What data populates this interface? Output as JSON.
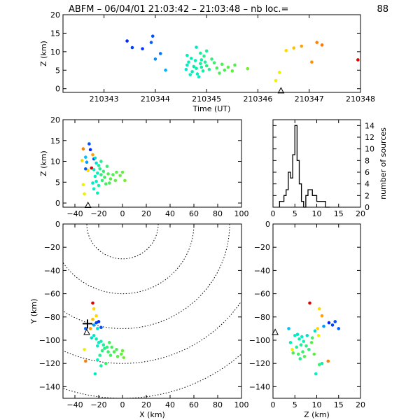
{
  "chart_data": [
    {
      "panel": "time-altitude",
      "type": "scatter",
      "title": "ABFM – 06/04/01 21:03:42 – 21:03:48 – nb loc.=",
      "count": "88",
      "xlabel": "Time (UT)",
      "ylabel": "Z (km)",
      "xlim": [
        210342.2,
        210348
      ],
      "ylim": [
        -1,
        20
      ],
      "xticks": [
        "210343",
        "210344",
        "210345",
        "210346",
        "210347",
        "210348"
      ],
      "yticks": [
        "0",
        "5",
        "10",
        "15",
        "20"
      ],
      "station": {
        "x": 210346.45,
        "y": -0.5
      },
      "points": [
        {
          "x": 210343.45,
          "y": 12.9,
          "c": "#0028ff"
        },
        {
          "x": 210343.55,
          "y": 11.1,
          "c": "#0040ff"
        },
        {
          "x": 210343.75,
          "y": 10.8,
          "c": "#0a34ff"
        },
        {
          "x": 210343.95,
          "y": 14.2,
          "c": "#0050ff"
        },
        {
          "x": 210343.92,
          "y": 12.5,
          "c": "#0060ff"
        },
        {
          "x": 210344.1,
          "y": 9.5,
          "c": "#0078ff"
        },
        {
          "x": 210344.0,
          "y": 8.0,
          "c": "#0090ff"
        },
        {
          "x": 210344.2,
          "y": 5.0,
          "c": "#00b0ff"
        },
        {
          "x": 210344.8,
          "y": 11.2,
          "c": "#00e6c8"
        },
        {
          "x": 210344.62,
          "y": 9.0,
          "c": "#00f0b8"
        },
        {
          "x": 210344.7,
          "y": 8.2,
          "c": "#00f0b0"
        },
        {
          "x": 210344.78,
          "y": 7.6,
          "c": "#00f0c0"
        },
        {
          "x": 210344.88,
          "y": 9.6,
          "c": "#10f0a0"
        },
        {
          "x": 210344.95,
          "y": 8.8,
          "c": "#20f090"
        },
        {
          "x": 210345.0,
          "y": 10.2,
          "c": "#18f098"
        },
        {
          "x": 210344.6,
          "y": 5.2,
          "c": "#00e8d0"
        },
        {
          "x": 210344.62,
          "y": 6.4,
          "c": "#00ecc8"
        },
        {
          "x": 210344.68,
          "y": 3.8,
          "c": "#00f0c0"
        },
        {
          "x": 210344.72,
          "y": 4.6,
          "c": "#00f0b8"
        },
        {
          "x": 210344.75,
          "y": 6.0,
          "c": "#00f0b0"
        },
        {
          "x": 210344.8,
          "y": 5.5,
          "c": "#08f0a8"
        },
        {
          "x": 210344.82,
          "y": 4.0,
          "c": "#00f0c0"
        },
        {
          "x": 210344.85,
          "y": 3.2,
          "c": "#00f0c8"
        },
        {
          "x": 210344.88,
          "y": 6.8,
          "c": "#10f0a0"
        },
        {
          "x": 210344.9,
          "y": 5.8,
          "c": "#18f098"
        },
        {
          "x": 210344.93,
          "y": 4.8,
          "c": "#10f0a8"
        },
        {
          "x": 210344.97,
          "y": 7.2,
          "c": "#20f090"
        },
        {
          "x": 210345.0,
          "y": 6.2,
          "c": "#28f080"
        },
        {
          "x": 210345.05,
          "y": 5.2,
          "c": "#20f090"
        },
        {
          "x": 210345.1,
          "y": 8.0,
          "c": "#30f078"
        },
        {
          "x": 210345.15,
          "y": 7.0,
          "c": "#38f070"
        },
        {
          "x": 210345.2,
          "y": 5.6,
          "c": "#40f060"
        },
        {
          "x": 210345.25,
          "y": 4.2,
          "c": "#48f058"
        },
        {
          "x": 210345.3,
          "y": 6.6,
          "c": "#50f050"
        },
        {
          "x": 210345.35,
          "y": 5.0,
          "c": "#48f050"
        },
        {
          "x": 210345.42,
          "y": 5.8,
          "c": "#58f048"
        },
        {
          "x": 210345.5,
          "y": 4.8,
          "c": "#60f040"
        },
        {
          "x": 210345.55,
          "y": 6.4,
          "c": "#50f050"
        },
        {
          "x": 210345.8,
          "y": 5.4,
          "c": "#70f030"
        },
        {
          "x": 210344.65,
          "y": 7.2,
          "c": "#00f0c0"
        },
        {
          "x": 210344.9,
          "y": 7.8,
          "c": "#10f0a8"
        },
        {
          "x": 210346.35,
          "y": 2.2,
          "c": "#f0f000"
        },
        {
          "x": 210346.42,
          "y": 4.4,
          "c": "#e8f000"
        },
        {
          "x": 210346.55,
          "y": 10.3,
          "c": "#ffd800"
        },
        {
          "x": 210346.7,
          "y": 11.0,
          "c": "#ffc000"
        },
        {
          "x": 210346.85,
          "y": 11.5,
          "c": "#ffa000"
        },
        {
          "x": 210347.15,
          "y": 12.5,
          "c": "#ff8000"
        },
        {
          "x": 210347.05,
          "y": 7.2,
          "c": "#ff9000"
        },
        {
          "x": 210347.25,
          "y": 11.8,
          "c": "#ff7800"
        },
        {
          "x": 210347.95,
          "y": 7.8,
          "c": "#e00000"
        }
      ]
    },
    {
      "panel": "x-altitude",
      "type": "scatter",
      "xlabel": "",
      "ylabel": "Z (km)",
      "xlim": [
        -50,
        100
      ],
      "ylim": [
        -1,
        20
      ],
      "xticks": [
        "−40",
        "−20",
        "0",
        "20",
        "40",
        "60",
        "80",
        "100"
      ],
      "yticks": [
        "0",
        "5",
        "10",
        "15",
        "20"
      ],
      "station": {
        "x": -29,
        "y": -0.5
      },
      "points": [
        {
          "x": -34,
          "y": 10.2,
          "c": "#ffd800"
        },
        {
          "x": -33,
          "y": 13.0,
          "c": "#ff8000"
        },
        {
          "x": -31,
          "y": 11.0,
          "c": "#00c0ff"
        },
        {
          "x": -28,
          "y": 14.2,
          "c": "#0050ff"
        },
        {
          "x": -27,
          "y": 12.8,
          "c": "#0028ff"
        },
        {
          "x": -29,
          "y": 7.8,
          "c": "#ffd800"
        },
        {
          "x": -26,
          "y": 8.4,
          "c": "#e00000"
        },
        {
          "x": -24,
          "y": 10.6,
          "c": "#0040ff"
        },
        {
          "x": -30,
          "y": 9.8,
          "c": "#00a0ff"
        },
        {
          "x": -31,
          "y": 8.2,
          "c": "#0060ff"
        },
        {
          "x": -25,
          "y": 11.6,
          "c": "#ffa000"
        },
        {
          "x": -33,
          "y": 4.4,
          "c": "#f0f000"
        },
        {
          "x": -32,
          "y": 2.2,
          "c": "#f0f000"
        },
        {
          "x": -22,
          "y": 9.6,
          "c": "#00e0d0"
        },
        {
          "x": -24,
          "y": 8.0,
          "c": "#00e8c8"
        },
        {
          "x": -21,
          "y": 7.2,
          "c": "#00f0b8"
        },
        {
          "x": -23,
          "y": 6.4,
          "c": "#00f0c0"
        },
        {
          "x": -22,
          "y": 5.2,
          "c": "#00f0c8"
        },
        {
          "x": -20,
          "y": 4.2,
          "c": "#10f0a8"
        },
        {
          "x": -25,
          "y": 4.8,
          "c": "#00e8d0"
        },
        {
          "x": -24,
          "y": 3.4,
          "c": "#00f0c0"
        },
        {
          "x": -19,
          "y": 8.2,
          "c": "#20f090"
        },
        {
          "x": -18,
          "y": 6.8,
          "c": "#28f080"
        },
        {
          "x": -17,
          "y": 5.4,
          "c": "#30f078"
        },
        {
          "x": -16,
          "y": 7.6,
          "c": "#38f070"
        },
        {
          "x": -15,
          "y": 6.2,
          "c": "#40f060"
        },
        {
          "x": -14,
          "y": 4.6,
          "c": "#48f058"
        },
        {
          "x": -12,
          "y": 7.0,
          "c": "#50f050"
        },
        {
          "x": -10,
          "y": 5.8,
          "c": "#58f048"
        },
        {
          "x": -8,
          "y": 6.8,
          "c": "#50f050"
        },
        {
          "x": -6,
          "y": 5.4,
          "c": "#60f040"
        },
        {
          "x": -5,
          "y": 7.4,
          "c": "#58f048"
        },
        {
          "x": -20,
          "y": 9.0,
          "c": "#18f098"
        },
        {
          "x": -18,
          "y": 10.0,
          "c": "#20f090"
        },
        {
          "x": -13,
          "y": 8.8,
          "c": "#38f070"
        },
        {
          "x": -2,
          "y": 6.6,
          "c": "#68f038"
        },
        {
          "x": 0,
          "y": 7.4,
          "c": "#60f040"
        },
        {
          "x": 2,
          "y": 5.4,
          "c": "#70f030"
        },
        {
          "x": -21,
          "y": 2.4,
          "c": "#00f0c0"
        },
        {
          "x": -23,
          "y": 10.8,
          "c": "#00e0d0"
        },
        {
          "x": -11,
          "y": 4.8,
          "c": "#48f058"
        }
      ]
    },
    {
      "panel": "altitude-histogram",
      "type": "bar",
      "xlabel": "",
      "ylabel": "number of sources",
      "xlim": [
        0,
        20
      ],
      "ylim": [
        0,
        15
      ],
      "xticks": [
        "0",
        "5",
        "10",
        "15",
        "20"
      ],
      "yticks": [
        "0",
        "2",
        "4",
        "6",
        "8",
        "10",
        "12",
        "14"
      ],
      "bin_width": 0.5,
      "bin_start": 1.5,
      "counts": [
        1,
        1,
        2,
        3,
        6,
        5,
        9,
        14,
        8,
        4,
        1,
        0,
        2,
        3,
        3,
        2,
        2,
        1,
        1,
        1,
        1,
        0,
        0
      ]
    },
    {
      "panel": "plan-view",
      "type": "scatter",
      "xlabel": "X (km)",
      "ylabel": "Y (km)",
      "xlim": [
        -50,
        100
      ],
      "ylim": [
        -150,
        0
      ],
      "xticks": [
        "−40",
        "−20",
        "0",
        "20",
        "40",
        "60",
        "80",
        "100"
      ],
      "yticks": [
        "−140",
        "−120",
        "−100",
        "−80",
        "−60",
        "−40",
        "−20",
        "0"
      ],
      "ring_center": [
        0,
        0
      ],
      "ring_radii": [
        30,
        60,
        90,
        120,
        150
      ],
      "station": {
        "x": -30,
        "y": -93
      },
      "points": [
        {
          "x": -25,
          "y": -68,
          "c": "#e00000"
        },
        {
          "x": -24,
          "y": -73,
          "c": "#ffd800"
        },
        {
          "x": -22,
          "y": -79,
          "c": "#ffd800"
        },
        {
          "x": -22,
          "y": -85,
          "c": "#0040ff"
        },
        {
          "x": -24,
          "y": -87,
          "c": "#00a0ff"
        },
        {
          "x": -20,
          "y": -84,
          "c": "#0028ff"
        },
        {
          "x": -27,
          "y": -90,
          "c": "#ffa000"
        },
        {
          "x": -31,
          "y": -90,
          "c": "#0060ff"
        },
        {
          "x": -21,
          "y": -90,
          "c": "#00e0d0"
        },
        {
          "x": -18,
          "y": -89,
          "c": "#0050ff"
        },
        {
          "x": -32,
          "y": -108,
          "c": "#f0f000"
        },
        {
          "x": -31,
          "y": -118,
          "c": "#ff8000"
        },
        {
          "x": -24,
          "y": -96,
          "c": "#00e8c8"
        },
        {
          "x": -22,
          "y": -99,
          "c": "#00f0b8"
        },
        {
          "x": -20,
          "y": -102,
          "c": "#00f0c0"
        },
        {
          "x": -21,
          "y": -105,
          "c": "#00f0c8"
        },
        {
          "x": -18,
          "y": -101,
          "c": "#10f0a8"
        },
        {
          "x": -16,
          "y": -104,
          "c": "#18f098"
        },
        {
          "x": -15,
          "y": -107,
          "c": "#20f090"
        },
        {
          "x": -17,
          "y": -109,
          "c": "#28f080"
        },
        {
          "x": -13,
          "y": -106,
          "c": "#30f078"
        },
        {
          "x": -12,
          "y": -110,
          "c": "#38f070"
        },
        {
          "x": -10,
          "y": -113,
          "c": "#40f060"
        },
        {
          "x": -7,
          "y": -110,
          "c": "#48f058"
        },
        {
          "x": -5,
          "y": -108,
          "c": "#50f050"
        },
        {
          "x": -4,
          "y": -114,
          "c": "#58f048"
        },
        {
          "x": -1,
          "y": -112,
          "c": "#60f040"
        },
        {
          "x": 0,
          "y": -109,
          "c": "#68f038"
        },
        {
          "x": 1,
          "y": -115,
          "c": "#70f030"
        },
        {
          "x": -19,
          "y": -113,
          "c": "#20f090"
        },
        {
          "x": -21,
          "y": -117,
          "c": "#00f0c0"
        },
        {
          "x": -14,
          "y": -120,
          "c": "#38f070"
        },
        {
          "x": -18,
          "y": -122,
          "c": "#10f0a8"
        },
        {
          "x": -26,
          "y": -98,
          "c": "#00e0d0"
        },
        {
          "x": -11,
          "y": -102,
          "c": "#40f060"
        },
        {
          "x": -23,
          "y": -129,
          "c": "#00f0c8"
        },
        {
          "x": -9,
          "y": -106,
          "c": "#48f058"
        },
        {
          "x": -25,
          "y": -82,
          "c": "#ffc000"
        }
      ]
    },
    {
      "panel": "altitude-y",
      "type": "scatter",
      "xlabel": "Z (km)",
      "ylabel": "",
      "xlim": [
        0,
        20
      ],
      "ylim": [
        -150,
        0
      ],
      "xticks": [
        "0",
        "5",
        "10",
        "15",
        "20"
      ],
      "yticks": [
        "−140",
        "−120",
        "−100",
        "−80",
        "−60",
        "−40",
        "−20",
        "0"
      ],
      "station": {
        "x": 0.5,
        "y": -93
      },
      "points": [
        {
          "x": 8.4,
          "y": -68,
          "c": "#e00000"
        },
        {
          "x": 10.6,
          "y": -73,
          "c": "#ffd800"
        },
        {
          "x": 11.2,
          "y": -79,
          "c": "#ffa000"
        },
        {
          "x": 12.8,
          "y": -85,
          "c": "#0028ff"
        },
        {
          "x": 14.2,
          "y": -84,
          "c": "#0050ff"
        },
        {
          "x": 13.6,
          "y": -87,
          "c": "#0040ff"
        },
        {
          "x": 15.0,
          "y": -90,
          "c": "#0060ff"
        },
        {
          "x": 11.6,
          "y": -88,
          "c": "#00a0ff"
        },
        {
          "x": 10.2,
          "y": -90,
          "c": "#ffd800"
        },
        {
          "x": 3.6,
          "y": -90,
          "c": "#00c0ff"
        },
        {
          "x": 9.6,
          "y": -92,
          "c": "#00e0d0"
        },
        {
          "x": 4.4,
          "y": -108,
          "c": "#f0f000"
        },
        {
          "x": 12.6,
          "y": -118,
          "c": "#ff8000"
        },
        {
          "x": 5.0,
          "y": -96,
          "c": "#00f0c0"
        },
        {
          "x": 6.0,
          "y": -99,
          "c": "#00f0b8"
        },
        {
          "x": 7.0,
          "y": -101,
          "c": "#10f0a8"
        },
        {
          "x": 6.4,
          "y": -104,
          "c": "#18f098"
        },
        {
          "x": 5.4,
          "y": -106,
          "c": "#20f090"
        },
        {
          "x": 7.6,
          "y": -105,
          "c": "#28f080"
        },
        {
          "x": 8.2,
          "y": -108,
          "c": "#30f078"
        },
        {
          "x": 6.8,
          "y": -110,
          "c": "#38f070"
        },
        {
          "x": 5.8,
          "y": -112,
          "c": "#40f060"
        },
        {
          "x": 4.6,
          "y": -111,
          "c": "#48f058"
        },
        {
          "x": 7.2,
          "y": -114,
          "c": "#50f050"
        },
        {
          "x": 8.8,
          "y": -102,
          "c": "#58f048"
        },
        {
          "x": 9.4,
          "y": -112,
          "c": "#60f040"
        },
        {
          "x": 6.2,
          "y": -116,
          "c": "#20f090"
        },
        {
          "x": 10.6,
          "y": -121,
          "c": "#38f070"
        },
        {
          "x": 11.2,
          "y": -120,
          "c": "#10f0a8"
        },
        {
          "x": 9.8,
          "y": -129,
          "c": "#00f0c8"
        },
        {
          "x": 5.6,
          "y": -95,
          "c": "#00e8c8"
        },
        {
          "x": 6.6,
          "y": -97,
          "c": "#00f0c0"
        },
        {
          "x": 7.8,
          "y": -96,
          "c": "#00e0d0"
        },
        {
          "x": 4.0,
          "y": -102,
          "c": "#00f0b8"
        },
        {
          "x": 9.0,
          "y": -98,
          "c": "#40f060"
        },
        {
          "x": 10.4,
          "y": -96,
          "c": "#f0f000"
        }
      ]
    }
  ]
}
